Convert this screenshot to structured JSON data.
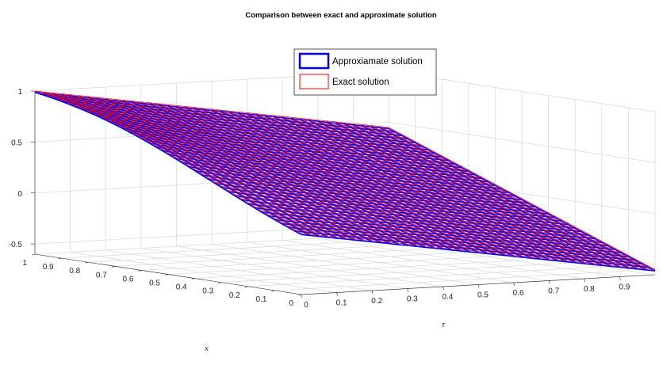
{
  "chart_data": {
    "type": "surface",
    "title": "Comparison between exact and approximate solution",
    "xlabel": "x",
    "ylabel": "τ",
    "zlabel": "",
    "x_ticks": [
      "0",
      "0.1",
      "0.2",
      "0.3",
      "0.4",
      "0.5",
      "0.6",
      "0.7",
      "0.8",
      "0.9",
      "1"
    ],
    "tau_ticks": [
      "0",
      "0.1",
      "0.2",
      "0.3",
      "0.4",
      "0.5",
      "0.6",
      "0.7",
      "0.8",
      "0.9"
    ],
    "z_ticks": [
      "-0.5",
      "0",
      "0.5",
      "1"
    ],
    "x_range": [
      0,
      1
    ],
    "tau_range": [
      0,
      1
    ],
    "z_range": [
      -0.6,
      1
    ],
    "grid": true,
    "legend_position": "top-center",
    "series": [
      {
        "name": "Approxiamate solution",
        "color": "#0000ff",
        "style": "mesh"
      },
      {
        "name": "Exact solution",
        "color": "#ff0000",
        "style": "mesh"
      }
    ],
    "surface_samples": {
      "note_points": "z = x at tau = 0; z near 1 at x = 1 for small tau",
      "corners": [
        {
          "x": 0,
          "tau": 0,
          "z": 0
        },
        {
          "x": 1,
          "tau": 0,
          "z": 1
        },
        {
          "x": 0,
          "tau": 1,
          "z": -0.5
        },
        {
          "x": 1,
          "tau": 1,
          "z": 0.45
        }
      ]
    },
    "mesh_size": 40
  }
}
